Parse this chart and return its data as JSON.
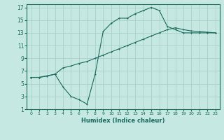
{
  "xlabel": "Humidex (Indice chaleur)",
  "ylabel": "",
  "bg_color": "#c5e8e2",
  "grid_color": "#a8d0c8",
  "line_color": "#1a6b5a",
  "xlim": [
    -0.5,
    23.5
  ],
  "ylim": [
    1,
    17.5
  ],
  "xticks": [
    0,
    1,
    2,
    3,
    4,
    5,
    6,
    7,
    8,
    9,
    10,
    11,
    12,
    13,
    14,
    15,
    16,
    17,
    18,
    19,
    20,
    21,
    22,
    23
  ],
  "yticks": [
    1,
    3,
    5,
    7,
    9,
    11,
    13,
    15,
    17
  ],
  "line1_x": [
    0,
    1,
    3,
    4,
    5,
    6,
    7,
    8,
    9,
    10,
    11,
    12,
    13,
    14,
    15,
    16,
    17,
    18,
    19,
    20,
    21,
    22,
    23
  ],
  "line1_y": [
    6,
    6,
    6.5,
    4.5,
    3,
    2.5,
    1.8,
    6.5,
    13.2,
    14.5,
    15.3,
    15.3,
    16.0,
    16.5,
    17.0,
    16.5,
    14.0,
    13.5,
    13.0,
    13.0,
    13.0,
    13.0,
    13.0
  ],
  "line2_x": [
    0,
    1,
    2,
    3,
    4,
    5,
    6,
    7,
    8,
    9,
    10,
    11,
    12,
    13,
    14,
    15,
    16,
    17,
    18,
    19,
    20,
    21,
    22,
    23
  ],
  "line2_y": [
    6,
    6,
    6.2,
    6.5,
    7.5,
    7.8,
    8.2,
    8.5,
    9.0,
    9.5,
    10.0,
    10.5,
    11.0,
    11.5,
    12.0,
    12.5,
    13.0,
    13.5,
    13.8,
    13.5,
    13.3,
    13.2,
    13.1,
    13.0
  ]
}
